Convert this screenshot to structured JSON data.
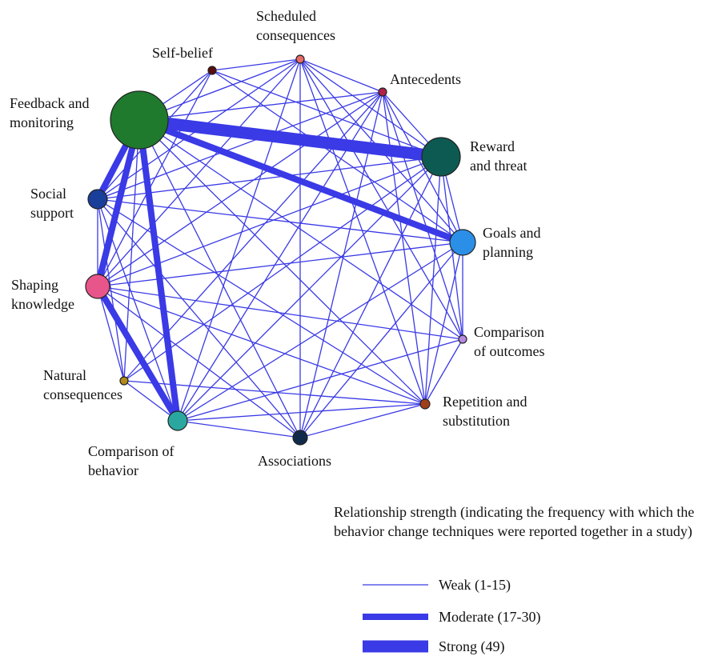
{
  "colors": {
    "edge": "#3a3ae6"
  },
  "nodes": [
    {
      "id": "feedback",
      "label": [
        "Feedback and",
        "monitoring"
      ],
      "color": "#1f7a2e",
      "icon": "green-circle"
    },
    {
      "id": "selfbelief",
      "label": [
        "Self-belief"
      ],
      "color": "#5a0d0d",
      "icon": "dark-red-circle"
    },
    {
      "id": "scheduled",
      "label": [
        "Scheduled",
        "consequences"
      ],
      "color": "#e86a6a",
      "icon": "salmon-circle"
    },
    {
      "id": "antecedents",
      "label": [
        "Antecedents"
      ],
      "color": "#b0204a",
      "icon": "crimson-circle"
    },
    {
      "id": "reward",
      "label": [
        "Reward",
        "and threat"
      ],
      "color": "#0d5a52",
      "icon": "dark-teal-circle"
    },
    {
      "id": "goals",
      "label": [
        "Goals and",
        "planning"
      ],
      "color": "#2b8fe8",
      "icon": "sky-blue-circle"
    },
    {
      "id": "compout",
      "label": [
        "Comparison",
        "of outcomes"
      ],
      "color": "#b58ae0",
      "icon": "lavender-circle"
    },
    {
      "id": "repetition",
      "label": [
        "Repetition and",
        "substitution"
      ],
      "color": "#a0401a",
      "icon": "rust-circle"
    },
    {
      "id": "associations",
      "label": [
        "Associations"
      ],
      "color": "#122a4a",
      "icon": "navy-circle"
    },
    {
      "id": "compbeh",
      "label": [
        "Comparison of",
        "behavior"
      ],
      "color": "#2aa8a0",
      "icon": "teal-circle"
    },
    {
      "id": "natural",
      "label": [
        "Natural",
        "consequences"
      ],
      "color": "#b08a1a",
      "icon": "ochre-circle"
    },
    {
      "id": "shaping",
      "label": [
        "Shaping",
        "knowledge"
      ],
      "color": "#e8558a",
      "icon": "pink-circle"
    },
    {
      "id": "social",
      "label": [
        "Social",
        "support"
      ],
      "color": "#1a3f9a",
      "icon": "blue-circle"
    }
  ],
  "edges": [
    [
      "feedback",
      "reward",
      "strong"
    ],
    [
      "feedback",
      "goals",
      "moderate"
    ],
    [
      "feedback",
      "shaping",
      "moderate"
    ],
    [
      "feedback",
      "compbeh",
      "moderate"
    ],
    [
      "feedback",
      "social",
      "moderate"
    ],
    [
      "shaping",
      "compbeh",
      "moderate"
    ],
    [
      "feedback",
      "selfbelief",
      "weak"
    ],
    [
      "feedback",
      "scheduled",
      "weak"
    ],
    [
      "feedback",
      "antecedents",
      "weak"
    ],
    [
      "feedback",
      "compout",
      "weak"
    ],
    [
      "feedback",
      "repetition",
      "weak"
    ],
    [
      "feedback",
      "associations",
      "weak"
    ],
    [
      "feedback",
      "natural",
      "weak"
    ],
    [
      "selfbelief",
      "scheduled",
      "weak"
    ],
    [
      "selfbelief",
      "reward",
      "weak"
    ],
    [
      "selfbelief",
      "goals",
      "weak"
    ],
    [
      "selfbelief",
      "social",
      "weak"
    ],
    [
      "selfbelief",
      "shaping",
      "weak"
    ],
    [
      "scheduled",
      "antecedents",
      "weak"
    ],
    [
      "scheduled",
      "reward",
      "weak"
    ],
    [
      "scheduled",
      "goals",
      "weak"
    ],
    [
      "scheduled",
      "repetition",
      "weak"
    ],
    [
      "scheduled",
      "associations",
      "weak"
    ],
    [
      "scheduled",
      "compbeh",
      "weak"
    ],
    [
      "scheduled",
      "shaping",
      "weak"
    ],
    [
      "scheduled",
      "social",
      "weak"
    ],
    [
      "scheduled",
      "compout",
      "weak"
    ],
    [
      "antecedents",
      "reward",
      "weak"
    ],
    [
      "antecedents",
      "goals",
      "weak"
    ],
    [
      "antecedents",
      "compout",
      "weak"
    ],
    [
      "antecedents",
      "repetition",
      "weak"
    ],
    [
      "antecedents",
      "associations",
      "weak"
    ],
    [
      "antecedents",
      "compbeh",
      "weak"
    ],
    [
      "antecedents",
      "natural",
      "weak"
    ],
    [
      "antecedents",
      "shaping",
      "weak"
    ],
    [
      "antecedents",
      "social",
      "weak"
    ],
    [
      "reward",
      "goals",
      "weak"
    ],
    [
      "reward",
      "compout",
      "weak"
    ],
    [
      "reward",
      "repetition",
      "weak"
    ],
    [
      "reward",
      "associations",
      "weak"
    ],
    [
      "reward",
      "compbeh",
      "weak"
    ],
    [
      "reward",
      "natural",
      "weak"
    ],
    [
      "reward",
      "shaping",
      "weak"
    ],
    [
      "reward",
      "social",
      "weak"
    ],
    [
      "goals",
      "compout",
      "weak"
    ],
    [
      "goals",
      "repetition",
      "weak"
    ],
    [
      "goals",
      "associations",
      "weak"
    ],
    [
      "goals",
      "compbeh",
      "weak"
    ],
    [
      "goals",
      "shaping",
      "weak"
    ],
    [
      "goals",
      "social",
      "weak"
    ],
    [
      "compout",
      "repetition",
      "weak"
    ],
    [
      "compout",
      "compbeh",
      "weak"
    ],
    [
      "compout",
      "shaping",
      "weak"
    ],
    [
      "repetition",
      "associations",
      "weak"
    ],
    [
      "repetition",
      "compbeh",
      "weak"
    ],
    [
      "repetition",
      "shaping",
      "weak"
    ],
    [
      "repetition",
      "social",
      "weak"
    ],
    [
      "repetition",
      "natural",
      "weak"
    ],
    [
      "associations",
      "compbeh",
      "weak"
    ],
    [
      "associations",
      "shaping",
      "weak"
    ],
    [
      "associations",
      "social",
      "weak"
    ],
    [
      "compbeh",
      "natural",
      "weak"
    ],
    [
      "compbeh",
      "social",
      "weak"
    ],
    [
      "natural",
      "shaping",
      "weak"
    ],
    [
      "natural",
      "social",
      "weak"
    ],
    [
      "shaping",
      "social",
      "weak"
    ]
  ],
  "legend": {
    "title": "Relationship strength (indicating the frequency with which the behavior change techniques were reported together in a study)",
    "items": [
      {
        "key": "weak",
        "label": "Weak (1-15)"
      },
      {
        "key": "moderate",
        "label": "Moderate (17-30)"
      },
      {
        "key": "strong",
        "label": "Strong (49)"
      }
    ]
  }
}
